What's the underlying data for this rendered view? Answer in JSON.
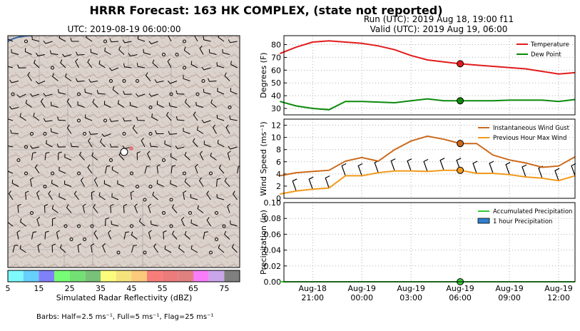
{
  "header": {
    "title": "HRRR Forecast: 163 HK COMPLEX, (state not reported)",
    "run": "Run (UTC): 2019 Aug 18, 19:00 f11",
    "valid": "Valid (UTC): 2019 Aug 19, 06:00"
  },
  "map": {
    "title": "UTC: 2019-08-19 06:00:00",
    "colorbar_label": "Simulated Radar Reflectivity (dBZ)",
    "colorbar_ticks": [
      "5",
      "15",
      "25",
      "35",
      "45",
      "55",
      "65",
      "75"
    ],
    "colorbar_colors": [
      "#7df9fc",
      "#67cffc",
      "#8080f9",
      "#77fc75",
      "#73e073",
      "#78c178",
      "#fcfc7c",
      "#f5e37c",
      "#fbc97b",
      "#f77d7b",
      "#ec7b7c",
      "#e0807f",
      "#f97cf9",
      "#c8a5e8",
      "#7f7f7f"
    ],
    "barbs_note": "Barbs: Half=2.5 ms⁻¹, Full=5 ms⁻¹, Flag=25 ms⁻¹",
    "terrain_color": "#dcd2cc",
    "marker_color": "#ffffff"
  },
  "chart_data": [
    {
      "type": "line",
      "ylabel": "Degrees (F)",
      "ylim": [
        25,
        87
      ],
      "yticks": [
        "30",
        "40",
        "50",
        "60",
        "70",
        "80"
      ],
      "grid": true,
      "legend": "top-right",
      "x": [
        0,
        1,
        2,
        3,
        4,
        5,
        6,
        7,
        8,
        9,
        10,
        11,
        12,
        13,
        14,
        15,
        16,
        17,
        18
      ],
      "series": [
        {
          "name": "Temperature",
          "color": "#e11b1b",
          "values": [
            73,
            78,
            82,
            83,
            82,
            81,
            79,
            76,
            71.5,
            68,
            66.5,
            65,
            64,
            63,
            62,
            61,
            59,
            57,
            58
          ]
        },
        {
          "name": "Dew Point",
          "color": "#0b8a0b",
          "values": [
            35.5,
            32,
            30,
            29,
            35.5,
            35.5,
            35,
            34.5,
            36,
            37.5,
            36,
            36,
            36,
            36,
            36.5,
            36.5,
            36.5,
            35.5,
            37
          ]
        }
      ],
      "marker": {
        "index": 11,
        "values": [
          65,
          36
        ]
      }
    },
    {
      "type": "line",
      "ylabel": "Wind Speed (ms⁻¹)",
      "ylim": [
        0,
        13
      ],
      "yticks": [
        "0",
        "2",
        "4",
        "6",
        "8",
        "10",
        "12"
      ],
      "grid": true,
      "legend": "top-right",
      "x": [
        0,
        1,
        2,
        3,
        4,
        5,
        6,
        7,
        8,
        9,
        10,
        11,
        12,
        13,
        14,
        15,
        16,
        17,
        18
      ],
      "series": [
        {
          "name": "Instantaneous Wind Gust",
          "color": "#cc6a1b",
          "values": [
            3.7,
            4.2,
            4.4,
            4.6,
            6.1,
            6.7,
            6.1,
            8.0,
            9.4,
            10.2,
            9.7,
            9.0,
            9.0,
            7.1,
            6.3,
            5.8,
            5.1,
            5.3,
            6.8
          ]
        },
        {
          "name": "Previous Hour Max Wind",
          "color": "#f29a1c",
          "values": [
            0.7,
            1.2,
            1.5,
            1.7,
            3.7,
            3.7,
            4.2,
            4.5,
            4.5,
            4.4,
            4.6,
            4.6,
            4.1,
            4.1,
            3.9,
            3.5,
            3.3,
            2.9,
            3.7
          ]
        }
      ],
      "marker": {
        "index": 11,
        "values": [
          9.0,
          4.6
        ]
      }
    },
    {
      "type": "bar",
      "ylabel": "Precipitation (in)",
      "ylim": [
        0,
        0.1
      ],
      "yticks": [
        "0.00",
        "0.02",
        "0.04",
        "0.06",
        "0.08",
        "0.10"
      ],
      "grid": true,
      "legend": "top-right",
      "x": [
        0,
        1,
        2,
        3,
        4,
        5,
        6,
        7,
        8,
        9,
        10,
        11,
        12,
        13,
        14,
        15,
        16,
        17,
        18
      ],
      "series": [
        {
          "name": "Accumulated Precipitation",
          "color": "#33cc33",
          "values": [
            0,
            0,
            0,
            0,
            0,
            0,
            0,
            0,
            0,
            0,
            0,
            0,
            0,
            0,
            0,
            0,
            0,
            0,
            0
          ]
        },
        {
          "name": "1 hour Precipitation",
          "color": "#2e81d0",
          "values": [
            0,
            0,
            0,
            0,
            0,
            0,
            0,
            0,
            0,
            0,
            0,
            0,
            0,
            0,
            0,
            0,
            0,
            0,
            0
          ]
        }
      ],
      "marker": {
        "index": 11,
        "values": [
          0
        ]
      }
    }
  ],
  "xaxis": {
    "ticks": [
      {
        "index": 2,
        "line1": "Aug-18",
        "line2": "21:00"
      },
      {
        "index": 5,
        "line1": "Aug-19",
        "line2": "00:00"
      },
      {
        "index": 8,
        "line1": "Aug-19",
        "line2": "03:00"
      },
      {
        "index": 11,
        "line1": "Aug-19",
        "line2": "06:00"
      },
      {
        "index": 14,
        "line1": "Aug-19",
        "line2": "09:00"
      },
      {
        "index": 17,
        "line1": "Aug-19",
        "line2": "12:00"
      }
    ]
  }
}
